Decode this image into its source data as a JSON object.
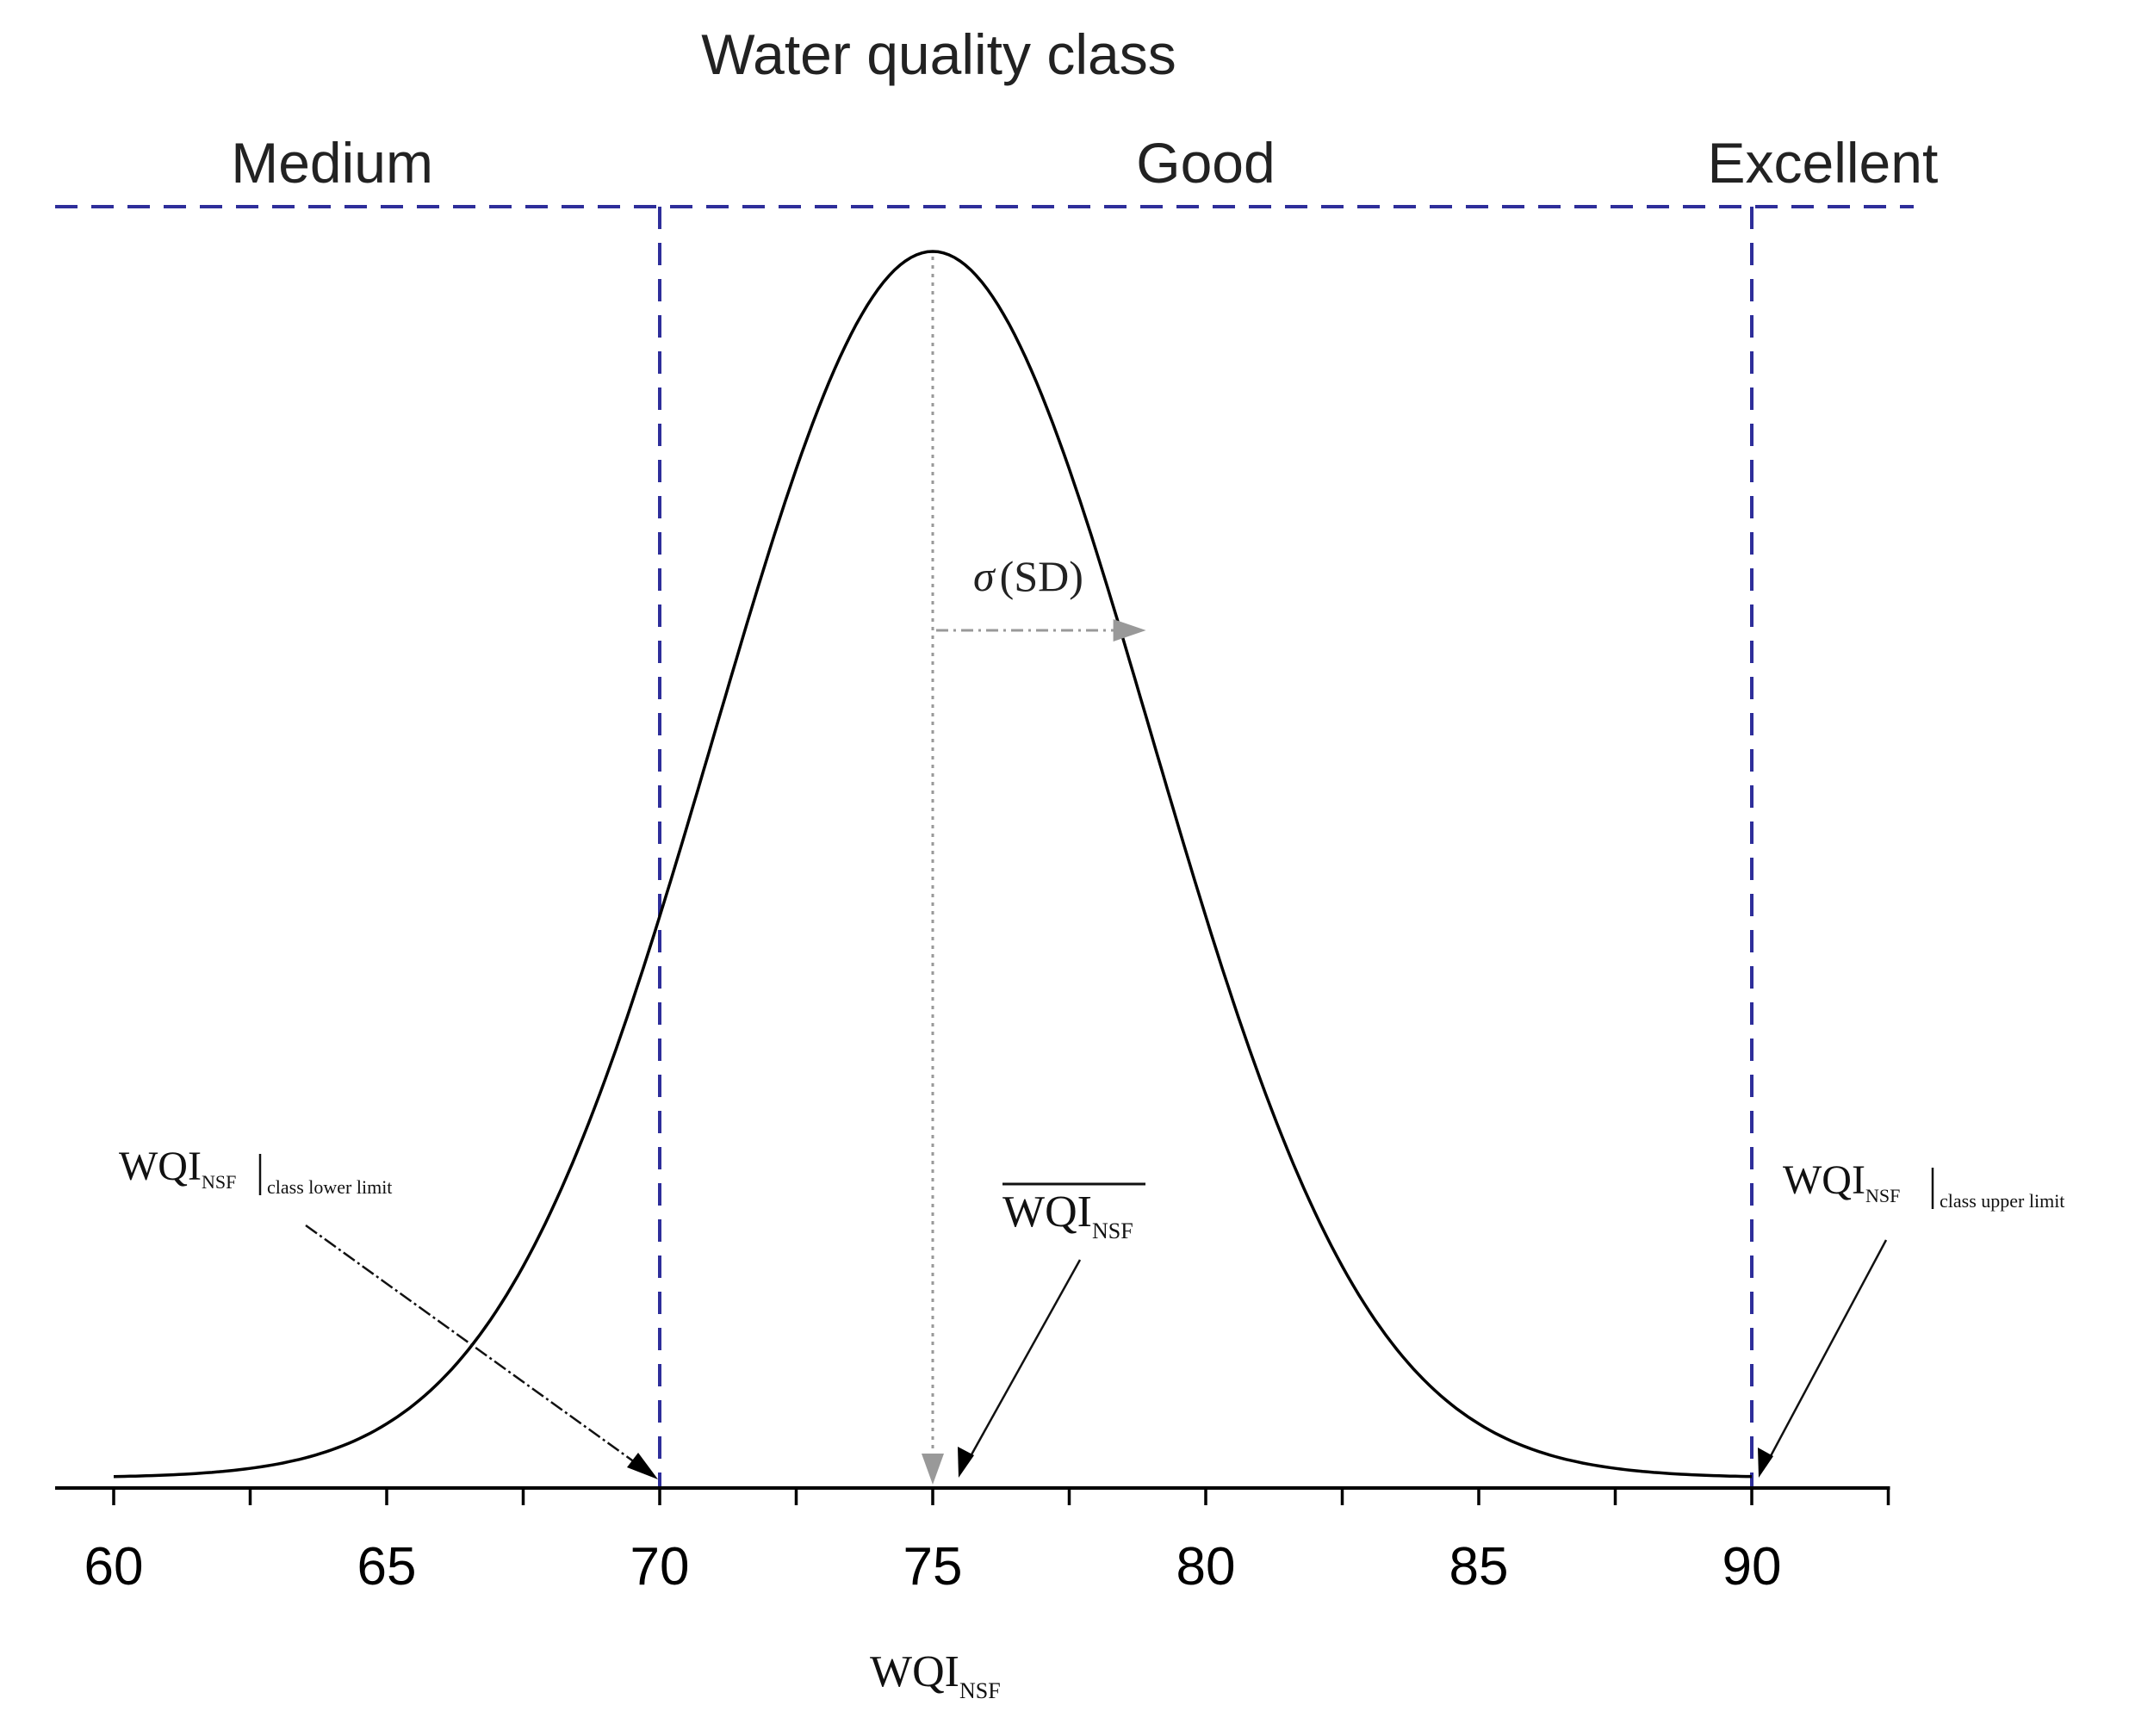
{
  "chart_data": {
    "type": "line",
    "title": "Water quality class",
    "xlabel": "WQI",
    "xlabel_sub": "NSF",
    "xlim": [
      59,
      92.5
    ],
    "xticks_major": [
      60,
      65,
      70,
      75,
      80,
      85,
      90
    ],
    "xticks_minor": [
      62.5,
      67.5,
      72.5,
      77.5,
      82.5,
      87.5,
      92.5
    ],
    "curve": {
      "kind": "normal",
      "mean": 75,
      "sd": 4,
      "x_range": [
        60,
        90
      ]
    },
    "class_boundaries": [
      70,
      90
    ],
    "classes": [
      {
        "label": "Medium",
        "center": 64
      },
      {
        "label": "Good",
        "center": 80
      },
      {
        "label": "Excellent",
        "center": 91.3
      }
    ],
    "annotations": {
      "sigma": {
        "symbol": "σ",
        "text": "(SD)"
      },
      "mean": {
        "main": "WQI",
        "sub": "NSF"
      },
      "lower": {
        "main": "WQI",
        "sub": "NSF",
        "tail": "class lower limit"
      },
      "upper": {
        "main": "WQI",
        "sub": "NSF",
        "tail": "class upper limit"
      }
    },
    "colors": {
      "boundary": "#2e2e9a",
      "curve": "#000000",
      "guide": "#999999"
    }
  }
}
